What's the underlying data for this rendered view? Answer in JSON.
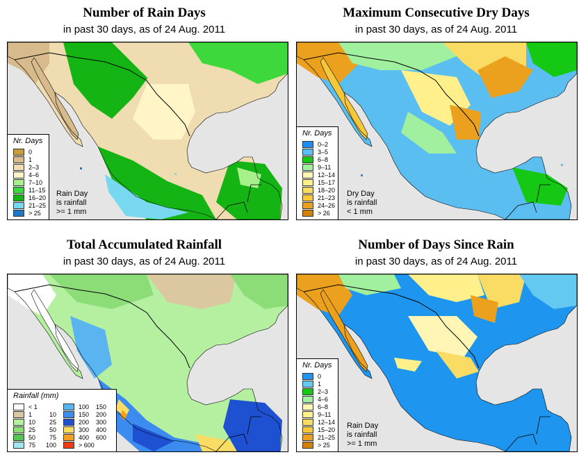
{
  "panels": {
    "rain_days": {
      "title": "Number of Rain Days",
      "subtitle": "in past 30 days, as of 24 Aug. 2011",
      "legend_title": "Nr. Days",
      "legend": [
        {
          "label": "0",
          "color": "#c89b3c"
        },
        {
          "label": "1",
          "color": "#d8bb8c"
        },
        {
          "label": "2–3",
          "color": "#efdcb0"
        },
        {
          "label": "4–6",
          "color": "#fff5c6"
        },
        {
          "label": "7–10",
          "color": "#a8f08c"
        },
        {
          "label": "11–15",
          "color": "#3cd83c"
        },
        {
          "label": "16–20",
          "color": "#14b414"
        },
        {
          "label": "21–25",
          "color": "#78d8f0"
        },
        {
          "label": "> 25",
          "color": "#1e78c8"
        }
      ],
      "note": [
        "Rain Day",
        "is rainfall",
        ">= 1 mm"
      ]
    },
    "dry_days": {
      "title": "Maximum Consecutive Dry Days",
      "subtitle": "in past 30 days, as of 24 Aug. 2011",
      "legend_title": "Nr. Days",
      "legend": [
        {
          "label": "0–2",
          "color": "#1e8cf0"
        },
        {
          "label": "3–5",
          "color": "#5abef0"
        },
        {
          "label": "6–8",
          "color": "#14c814"
        },
        {
          "label": "9–11",
          "color": "#a0f0a0"
        },
        {
          "label": "12–14",
          "color": "#fff5b4"
        },
        {
          "label": "15–17",
          "color": "#fff08c"
        },
        {
          "label": "18–20",
          "color": "#fadc64"
        },
        {
          "label": "21–23",
          "color": "#f5c83c"
        },
        {
          "label": "24–26",
          "color": "#eba01e"
        },
        {
          "label": "> 26",
          "color": "#d2820a"
        }
      ],
      "note": [
        "Dry Day",
        "is rainfall",
        "< 1 mm"
      ]
    },
    "rainfall": {
      "title": "Total Accumulated Rainfall",
      "subtitle": "in past 30 days, as of 24 Aug. 2011",
      "legend_title": "Rainfall (mm)",
      "legend_left": [
        {
          "lo": "< 1",
          "hi": "",
          "color": "#ffffff"
        },
        {
          "lo": "1",
          "hi": "10",
          "color": "#dcc8a0"
        },
        {
          "lo": "10",
          "hi": "25",
          "color": "#b4f0a0"
        },
        {
          "lo": "25",
          "hi": "50",
          "color": "#8cdc78"
        },
        {
          "lo": "50",
          "hi": "75",
          "color": "#50c850"
        },
        {
          "lo": "75",
          "hi": "100",
          "color": "#a0e6f0"
        }
      ],
      "legend_right": [
        {
          "lo": "100",
          "hi": "150",
          "color": "#5ab4f0"
        },
        {
          "lo": "150",
          "hi": "200",
          "color": "#3c8cf0"
        },
        {
          "lo": "200",
          "hi": "300",
          "color": "#1e50d2"
        },
        {
          "lo": "300",
          "hi": "400",
          "color": "#fadc64"
        },
        {
          "lo": "400",
          "hi": "600",
          "color": "#f5a01e"
        },
        {
          "lo": "> 600",
          "hi": "",
          "color": "#f03c14"
        }
      ]
    },
    "since_rain": {
      "title": "Number of Days Since Rain",
      "subtitle": "in past 30 days, as of 24 Aug. 2011",
      "legend_title": "Nr. Days",
      "legend": [
        {
          "label": "0",
          "color": "#1e96f0"
        },
        {
          "label": "1",
          "color": "#64c8f0"
        },
        {
          "label": "2–3",
          "color": "#14c814"
        },
        {
          "label": "4–6",
          "color": "#a0f0a0"
        },
        {
          "label": "6–8",
          "color": "#fff5b4"
        },
        {
          "label": "9–11",
          "color": "#fff08c"
        },
        {
          "label": "12–14",
          "color": "#fadc64"
        },
        {
          "label": "15–20",
          "color": "#f5c83c"
        },
        {
          "label": "21–25",
          "color": "#eba01e"
        },
        {
          "label": "> 25",
          "color": "#d2820a"
        }
      ],
      "note": [
        "Rain Day",
        "is rainfall",
        ">= 1 mm"
      ]
    }
  },
  "colors": {
    "ocean": "#e5e5e5",
    "border": "#000000"
  }
}
